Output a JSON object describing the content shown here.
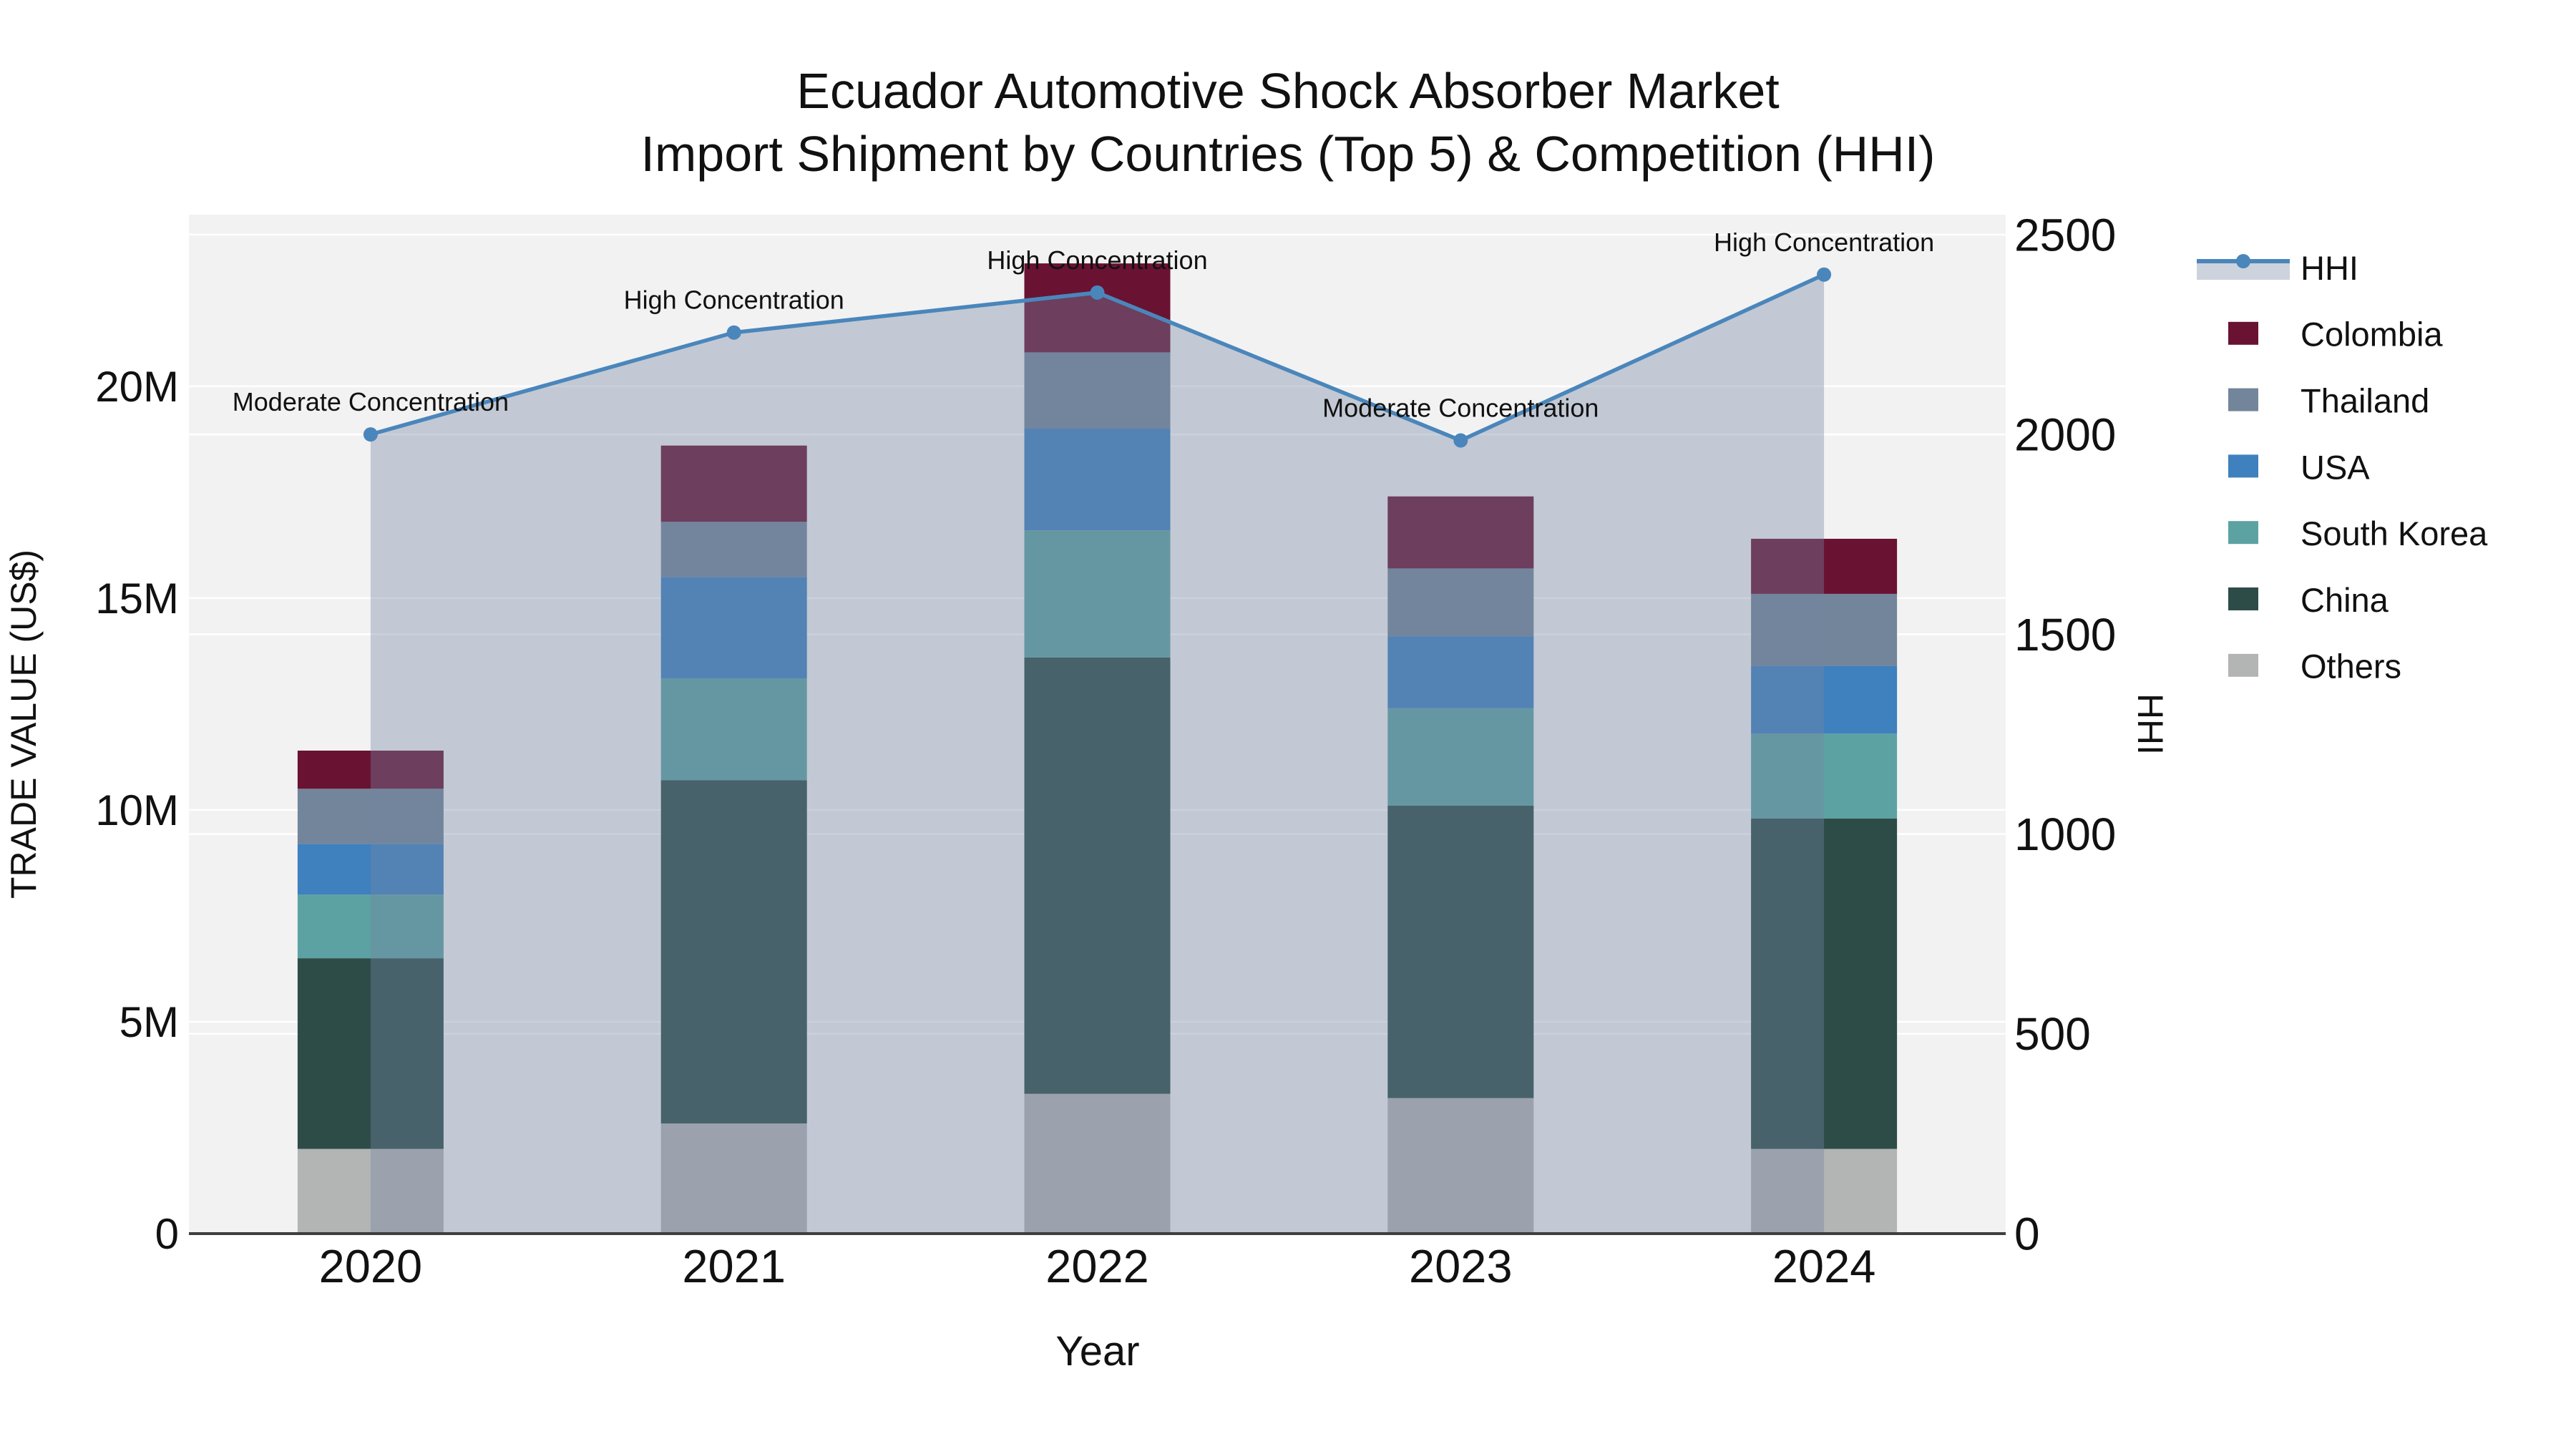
{
  "title": {
    "line1": "Ecuador Automotive Shock Absorber Market",
    "line2": "Import Shipment by Countries (Top 5) & Competition (HHI)"
  },
  "axes": {
    "x": {
      "title": "Year",
      "tick_labels": [
        "2020",
        "2021",
        "2022",
        "2023",
        "2024"
      ]
    },
    "y_left": {
      "title": "TRADE VALUE (US$)",
      "tick_labels": [
        "0",
        "5M",
        "10M",
        "15M",
        "20M"
      ],
      "tick_values": [
        0,
        5,
        10,
        15,
        20
      ],
      "range": [
        0,
        24.05
      ],
      "unit": "million US$"
    },
    "y_right": {
      "title": "HHI",
      "tick_labels": [
        "0",
        "500",
        "1000",
        "1500",
        "2000",
        "2500"
      ],
      "tick_values": [
        0,
        500,
        1000,
        1500,
        2000,
        2500
      ],
      "range": [
        0,
        2550
      ]
    }
  },
  "legend": {
    "order": [
      "HHI",
      "Colombia",
      "Thailand",
      "USA",
      "South Korea",
      "China",
      "Others"
    ]
  },
  "chart_data": {
    "type": "bar",
    "stacked": true,
    "categories": [
      "2020",
      "2021",
      "2022",
      "2023",
      "2024"
    ],
    "values_unit": "million US$",
    "series": [
      {
        "name": "Others",
        "color": "#b3b4b4",
        "values": [
          2.0,
          2.6,
          3.3,
          3.2,
          2.0
        ]
      },
      {
        "name": "China",
        "color": "#2d4c48",
        "values": [
          4.5,
          8.1,
          10.3,
          6.9,
          7.8
        ]
      },
      {
        "name": "South Korea",
        "color": "#5da2a3",
        "values": [
          1.5,
          2.4,
          3.0,
          2.3,
          2.0
        ]
      },
      {
        "name": "USA",
        "color": "#3f80be",
        "values": [
          1.2,
          2.4,
          2.4,
          1.7,
          1.6
        ]
      },
      {
        "name": "Thailand",
        "color": "#73859a",
        "values": [
          1.3,
          1.3,
          1.8,
          1.6,
          1.7
        ]
      },
      {
        "name": "Colombia",
        "color": "#6a1232",
        "values": [
          0.9,
          1.8,
          2.1,
          1.7,
          1.3
        ]
      }
    ],
    "line_series": {
      "name": "HHI",
      "yaxis": "right",
      "color": "#4a86bb",
      "marker": "circle",
      "area_fill": "rgba(116,135,162,0.38)",
      "values": [
        2000,
        2255,
        2355,
        1985,
        2400
      ]
    },
    "annotations": [
      {
        "category": "2020",
        "text": "Moderate Concentration"
      },
      {
        "category": "2021",
        "text": "High Concentration"
      },
      {
        "category": "2022",
        "text": "High Concentration"
      },
      {
        "category": "2023",
        "text": "Moderate Concentration"
      },
      {
        "category": "2024",
        "text": "High Concentration"
      }
    ],
    "style": {
      "plot_background": "#f2f2f3",
      "gridline_color": "#ffffff",
      "axis_line_color": "#3e3e3e",
      "text_color": "#111111"
    }
  }
}
